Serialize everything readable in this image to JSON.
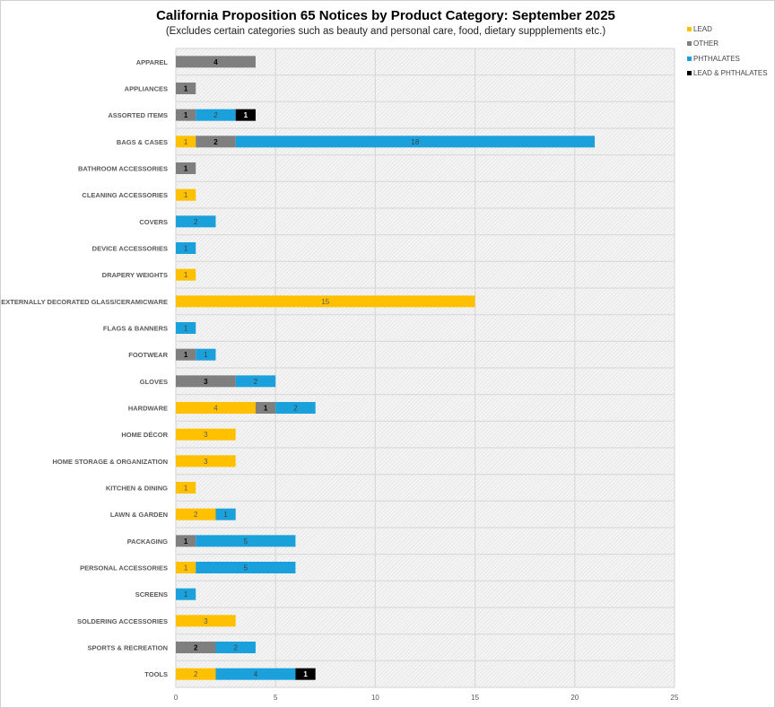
{
  "chart_data": {
    "type": "bar",
    "orientation": "horizontal",
    "stacked": true,
    "title": "California Proposition 65 Notices by Product Category: September 2025",
    "subtitle": "(Excludes certain categories such as beauty and personal care, food, dietary suppplements etc.)",
    "xlim": [
      0,
      25
    ],
    "xticks": [
      0,
      5,
      10,
      15,
      20,
      25
    ],
    "grid": true,
    "legend_position": "top-right",
    "categories": [
      "APPAREL",
      "APPLIANCES",
      "ASSORTED ITEMS",
      "BAGS & CASES",
      "BATHROOM ACCESSORIES",
      "CLEANING ACCESSORIES",
      "COVERS",
      "DEVICE ACCESSORIES",
      "DRAPERY WEIGHTS",
      "EXTERNALLY DECORATED GLASS/CERAMICWARE",
      "FLAGS & BANNERS",
      "FOOTWEAR",
      "GLOVES",
      "HARDWARE",
      "HOME DÉCOR",
      "HOME STORAGE & ORGANIZATION",
      "KITCHEN & DINING",
      "LAWN & GARDEN",
      "PACKAGING",
      "PERSONAL ACCESSORIES",
      "SCREENS",
      "SOLDERING ACCESSORIES",
      "SPORTS & RECREATION",
      "TOOLS"
    ],
    "series": [
      {
        "name": "LEAD",
        "color": "#FFC000",
        "label_color": "#595959",
        "values": [
          0,
          0,
          0,
          1,
          0,
          1,
          0,
          0,
          1,
          15,
          0,
          0,
          0,
          4,
          3,
          3,
          1,
          2,
          0,
          1,
          0,
          3,
          0,
          2
        ]
      },
      {
        "name": "OTHER",
        "color": "#7F7F7F",
        "label_color": "#000000",
        "values": [
          4,
          1,
          1,
          2,
          1,
          0,
          0,
          0,
          0,
          0,
          0,
          1,
          3,
          1,
          0,
          0,
          0,
          0,
          1,
          0,
          0,
          0,
          2,
          0
        ]
      },
      {
        "name": "PHTHALATES",
        "color": "#1AA1DB",
        "label_color": "#404040",
        "values": [
          0,
          0,
          2,
          18,
          0,
          0,
          2,
          1,
          0,
          0,
          1,
          1,
          2,
          2,
          0,
          0,
          0,
          1,
          5,
          5,
          1,
          0,
          2,
          4
        ]
      },
      {
        "name": "LEAD & PHTHALATES",
        "color": "#000000",
        "label_color": "#FFFFFF",
        "values": [
          0,
          0,
          1,
          0,
          0,
          0,
          0,
          0,
          0,
          0,
          0,
          0,
          0,
          0,
          0,
          0,
          0,
          0,
          0,
          0,
          0,
          0,
          0,
          1
        ]
      }
    ]
  }
}
